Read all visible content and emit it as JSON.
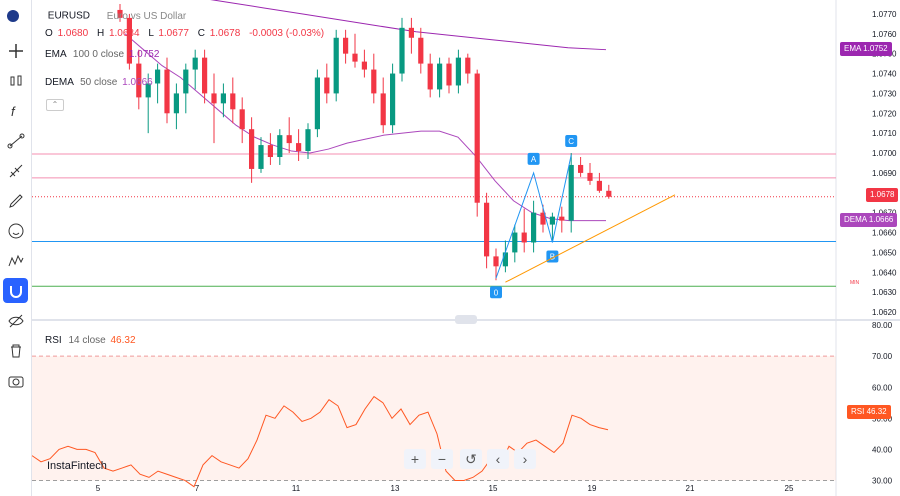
{
  "header": {
    "symbol": "EURUSD",
    "description": "Euro vs US Dollar",
    "o_label": "O",
    "o_value": "1.0680",
    "h_label": "H",
    "h_value": "1.0684",
    "l_label": "L",
    "l_value": "1.0677",
    "c_label": "C",
    "c_value": "1.0678",
    "change": "-0.0003 (-0.03%)"
  },
  "indicators": {
    "ema": {
      "label": "EMA",
      "params": "100 0 close",
      "value": "1.0752",
      "tag": "EMA",
      "tag_value": "1.0752"
    },
    "dema": {
      "label": "DEMA",
      "params": "50 close",
      "value": "1.0666",
      "tag": "DEMA",
      "tag_value": "1.0666"
    },
    "price_tag": "1.0678",
    "rsi": {
      "label": "RSI",
      "params": "14 close",
      "value": "46.32",
      "tag": "RSI",
      "tag_value": "46.32"
    }
  },
  "pattern_labels": [
    "0",
    "A",
    "B",
    "C"
  ],
  "min_label": "MIN",
  "watermark": "InstaFintech",
  "toolbar_icons": [
    "flag-icon",
    "crosshair-icon",
    "candles-icon",
    "function-icon",
    "nodes-icon",
    "ruler-icon",
    "pen-icon",
    "smile-icon",
    "pattern-icon",
    "magnet-icon",
    "eye-off-icon",
    "trash-icon",
    "camera-icon"
  ],
  "zoom_controls": {
    "plus": "+",
    "minus": "−",
    "reset": "↺",
    "left": "‹",
    "right": "›"
  },
  "colors": {
    "up": "#089981",
    "down": "#f23645",
    "ema": "#9c27b0",
    "dema": "#ab47bc",
    "rsi": "#ff5722",
    "zigzag": "#2196f3",
    "trend": "#ff9800",
    "accent": "#2962ff"
  },
  "chart_data": {
    "type": "candlestick",
    "price_axis": {
      "ticks": [
        "1.0770",
        "1.0760",
        "1.0750",
        "1.0740",
        "1.0730",
        "1.0720",
        "1.0710",
        "1.0700",
        "1.0690",
        "1.0680",
        "1.0670",
        "1.0660",
        "1.0650",
        "1.0640",
        "1.0630",
        "1.0620"
      ],
      "range": [
        1.0617,
        1.0777
      ]
    },
    "time_axis": {
      "ticks": [
        "5",
        "7",
        "11",
        "13",
        "15",
        "19",
        "21",
        "25"
      ]
    },
    "rsi_axis": {
      "ticks": [
        "80.00",
        "70.00",
        "60.00",
        "50.00",
        "40.00",
        "30.00"
      ],
      "range": [
        25,
        81
      ],
      "overbought": 70,
      "oversold": 30
    },
    "horizontal_levels": [
      {
        "price": 1.06995,
        "color": "#f48fb1"
      },
      {
        "price": 1.06875,
        "color": "#f48fb1"
      },
      {
        "price": 1.06555,
        "color": "#2196f3"
      },
      {
        "price": 1.0633,
        "color": "#4caf50"
      }
    ],
    "candles": [
      [
        1.0772,
        1.0775,
        1.0766,
        1.0768
      ],
      [
        1.0768,
        1.077,
        1.0742,
        1.0745
      ],
      [
        1.0745,
        1.0752,
        1.0722,
        1.0728
      ],
      [
        1.0728,
        1.074,
        1.071,
        1.0735
      ],
      [
        1.0735,
        1.0745,
        1.0725,
        1.0742
      ],
      [
        1.0742,
        1.0748,
        1.0715,
        1.072
      ],
      [
        1.072,
        1.0735,
        1.0712,
        1.073
      ],
      [
        1.073,
        1.0745,
        1.072,
        1.0742
      ],
      [
        1.0742,
        1.0752,
        1.0732,
        1.0748
      ],
      [
        1.0748,
        1.0752,
        1.0725,
        1.073
      ],
      [
        1.073,
        1.074,
        1.0705,
        1.0725
      ],
      [
        1.0725,
        1.0735,
        1.0718,
        1.073
      ],
      [
        1.073,
        1.0738,
        1.0715,
        1.0722
      ],
      [
        1.0722,
        1.0728,
        1.0705,
        1.0712
      ],
      [
        1.0712,
        1.0718,
        1.0685,
        1.0692
      ],
      [
        1.0692,
        1.0708,
        1.069,
        1.0704
      ],
      [
        1.0704,
        1.071,
        1.0694,
        1.0698
      ],
      [
        1.0698,
        1.0712,
        1.0694,
        1.0709
      ],
      [
        1.0709,
        1.0718,
        1.07,
        1.0705
      ],
      [
        1.0705,
        1.0712,
        1.0696,
        1.0701
      ],
      [
        1.0701,
        1.0715,
        1.0697,
        1.0712
      ],
      [
        1.0712,
        1.0742,
        1.0708,
        1.0738
      ],
      [
        1.0738,
        1.0745,
        1.0725,
        1.073
      ],
      [
        1.073,
        1.0762,
        1.0726,
        1.0758
      ],
      [
        1.0758,
        1.0762,
        1.0745,
        1.075
      ],
      [
        1.075,
        1.076,
        1.0743,
        1.0746
      ],
      [
        1.0746,
        1.0752,
        1.0738,
        1.0742
      ],
      [
        1.0742,
        1.075,
        1.0725,
        1.073
      ],
      [
        1.073,
        1.0738,
        1.071,
        1.0714
      ],
      [
        1.0714,
        1.0745,
        1.071,
        1.074
      ],
      [
        1.074,
        1.0768,
        1.0736,
        1.0763
      ],
      [
        1.0763,
        1.0768,
        1.075,
        1.0758
      ],
      [
        1.0758,
        1.0763,
        1.074,
        1.0745
      ],
      [
        1.0745,
        1.075,
        1.0728,
        1.0732
      ],
      [
        1.0732,
        1.0748,
        1.0728,
        1.0745
      ],
      [
        1.0745,
        1.0748,
        1.073,
        1.0734
      ],
      [
        1.0734,
        1.0752,
        1.073,
        1.0748
      ],
      [
        1.0748,
        1.075,
        1.0735,
        1.074
      ],
      [
        1.074,
        1.0742,
        1.0668,
        1.0675
      ],
      [
        1.0675,
        1.068,
        1.0642,
        1.0648
      ],
      [
        1.0648,
        1.0652,
        1.0636,
        1.0643
      ],
      [
        1.0643,
        1.0656,
        1.064,
        1.065
      ],
      [
        1.065,
        1.0664,
        1.0645,
        1.066
      ],
      [
        1.066,
        1.0672,
        1.065,
        1.0655
      ],
      [
        1.0655,
        1.0676,
        1.065,
        1.067
      ],
      [
        1.067,
        1.0674,
        1.066,
        1.0664
      ],
      [
        1.0664,
        1.067,
        1.0656,
        1.0668
      ],
      [
        1.0668,
        1.0673,
        1.066,
        1.0666
      ],
      [
        1.0666,
        1.07,
        1.066,
        1.0694
      ],
      [
        1.0694,
        1.0698,
        1.0688,
        1.069
      ],
      [
        1.069,
        1.0695,
        1.0684,
        1.0686
      ],
      [
        1.0686,
        1.069,
        1.068,
        1.0681
      ],
      [
        1.0681,
        1.0684,
        1.0677,
        1.0678
      ]
    ],
    "ema": [
      1.0782,
      1.0779,
      1.0776,
      1.0773,
      1.077,
      1.0767,
      1.0764,
      1.0761,
      1.0759,
      1.0757,
      1.0755,
      1.0753,
      1.0752
    ],
    "dema": [
      1.076,
      1.0752,
      1.0744,
      1.0738,
      1.073,
      1.0722,
      1.0714,
      1.0708,
      1.0704,
      1.0701,
      1.07,
      1.0702,
      1.0705,
      1.0707,
      1.0709,
      1.071,
      1.0711,
      1.0711,
      1.0708,
      1.0698,
      1.0686,
      1.0676,
      1.067,
      1.0667,
      1.0666,
      1.0666,
      1.0666
    ],
    "rsi": [
      38,
      36,
      37,
      40,
      41,
      40,
      40,
      39,
      34,
      33,
      34,
      35,
      32,
      31,
      33,
      32,
      31,
      30,
      28,
      35,
      38,
      36,
      35,
      34,
      37,
      43,
      51,
      50,
      54,
      52,
      49,
      50,
      52,
      56,
      54,
      47,
      48,
      53,
      57,
      55,
      50,
      53,
      48,
      51,
      52,
      45,
      33,
      30,
      30,
      31,
      33,
      37,
      35,
      41,
      39,
      42,
      43,
      41,
      39,
      42,
      51,
      50,
      48,
      47,
      46.32
    ],
    "zigzag": [
      [
        1.0637,
        "0"
      ],
      [
        1.069,
        "A"
      ],
      [
        1.0655,
        "B"
      ],
      [
        1.0699,
        "C"
      ]
    ]
  }
}
